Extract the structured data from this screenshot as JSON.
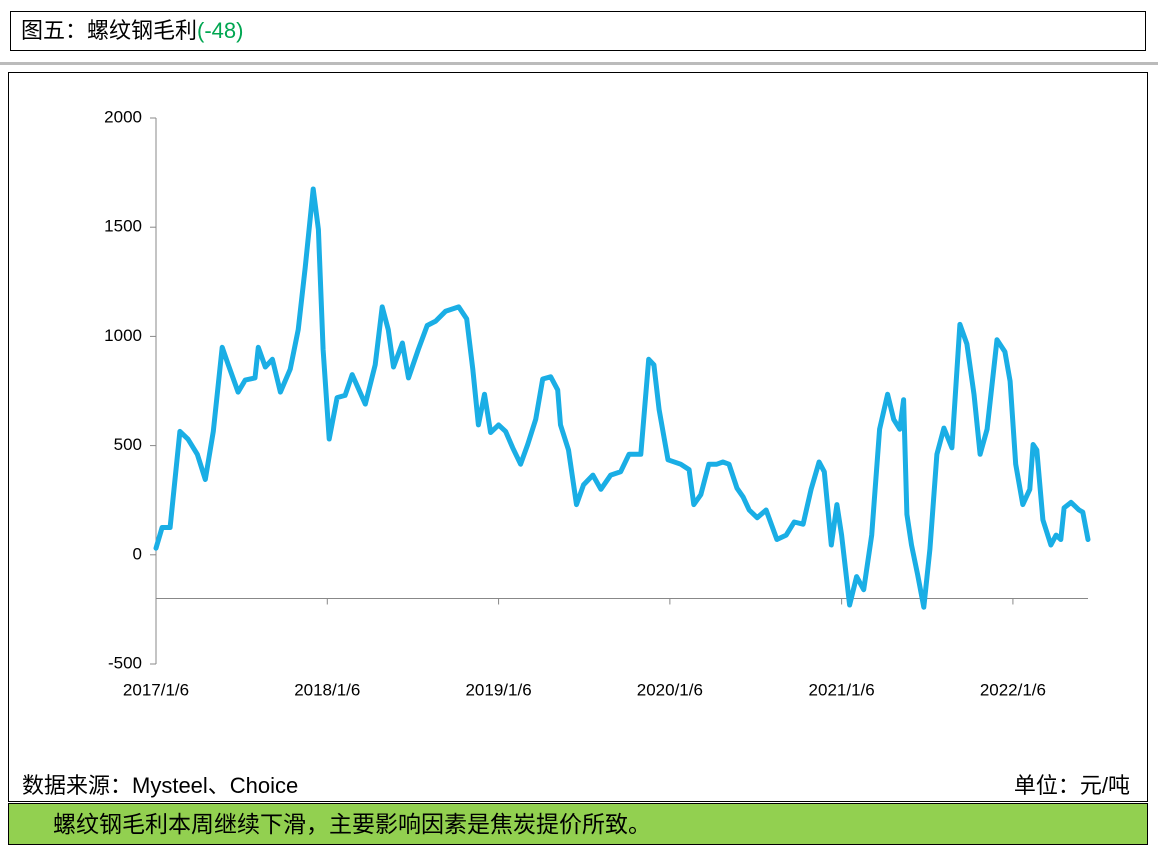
{
  "header": {
    "title": "图五：螺纹钢毛利",
    "title_note": "(-48)"
  },
  "chart_data": {
    "type": "line",
    "x": [
      "2017/1/6",
      "2017/1/19",
      "2017/2/5",
      "2017/2/26",
      "2017/3/15",
      "2017/4/4",
      "2017/4/21",
      "2017/5/8",
      "2017/5/27",
      "2017/6/9",
      "2017/6/30",
      "2017/7/15",
      "2017/8/5",
      "2017/8/12",
      "2017/8/27",
      "2017/9/11",
      "2017/9/28",
      "2017/10/19",
      "2017/11/5",
      "2017/11/20",
      "2017/12/7",
      "2017/12/18",
      "2017/12/28",
      "2018/1/10",
      "2018/1/27",
      "2018/2/13",
      "2018/2/28",
      "2018/3/28",
      "2018/4/18",
      "2018/5/3",
      "2018/5/16",
      "2018/5/27",
      "2018/6/15",
      "2018/6/28",
      "2018/7/19",
      "2018/8/7",
      "2018/8/25",
      "2018/9/15",
      "2018/10/13",
      "2018/10/30",
      "2018/11/12",
      "2018/11/24",
      "2018/12/7",
      "2018/12/20",
      "2019/1/6",
      "2019/1/21",
      "2019/2/5",
      "2019/2/22",
      "2019/3/9",
      "2019/3/26",
      "2019/4/10",
      "2019/4/27",
      "2019/5/12",
      "2019/5/18",
      "2019/6/4",
      "2019/6/21",
      "2019/7/6",
      "2019/7/26",
      "2019/8/12",
      "2019/9/2",
      "2019/9/23",
      "2019/10/11",
      "2019/11/5",
      "2019/11/22",
      "2019/12/3",
      "2019/12/14",
      "2020/1/2",
      "2020/1/29",
      "2020/2/16",
      "2020/2/26",
      "2020/3/12",
      "2020/3/29",
      "2020/4/15",
      "2020/4/28",
      "2020/5/11",
      "2020/5/28",
      "2020/6/10",
      "2020/6/23",
      "2020/7/10",
      "2020/7/29",
      "2020/8/21",
      "2020/9/10",
      "2020/9/27",
      "2020/10/16",
      "2020/11/2",
      "2020/11/19",
      "2020/11/30",
      "2020/12/15",
      "2020/12/27",
      "2021/1/6",
      "2021/1/23",
      "2021/2/7",
      "2021/2/22",
      "2021/3/11",
      "2021/3/28",
      "2021/4/14",
      "2021/4/27",
      "2021/5/10",
      "2021/5/18",
      "2021/5/25",
      "2021/6/4",
      "2021/6/17",
      "2021/6/30",
      "2021/7/13",
      "2021/7/28",
      "2021/8/12",
      "2021/8/29",
      "2021/9/15",
      "2021/9/30",
      "2021/10/15",
      "2021/10/28",
      "2021/11/12",
      "2021/12/3",
      "2021/12/20",
      "2021/12/31",
      "2022/1/12",
      "2022/1/27",
      "2022/2/11",
      "2022/2/18",
      "2022/2/26",
      "2022/3/11",
      "2022/3/28",
      "2022/4/8",
      "2022/4/18",
      "2022/4/25",
      "2022/5/10",
      "2022/5/27",
      "2022/6/4",
      "2022/6/15"
    ],
    "series": [
      {
        "color": "#1aaee5",
        "values": [
          30,
          125,
          125,
          565,
          530,
          460,
          345,
          565,
          950,
          870,
          745,
          800,
          810,
          950,
          860,
          895,
          745,
          850,
          1030,
          1315,
          1675,
          1490,
          940,
          530,
          720,
          730,
          825,
          690,
          870,
          1135,
          1030,
          860,
          970,
          810,
          940,
          1050,
          1070,
          1115,
          1135,
          1080,
          850,
          595,
          735,
          560,
          595,
          565,
          490,
          415,
          505,
          620,
          805,
          815,
          755,
          595,
          480,
          230,
          320,
          365,
          300,
          365,
          380,
          460,
          460,
          895,
          870,
          665,
          435,
          415,
          390,
          230,
          275,
          415,
          415,
          425,
          415,
          305,
          265,
          205,
          170,
          205,
          70,
          90,
          150,
          140,
          300,
          425,
          380,
          45,
          230,
          90,
          -230,
          -100,
          -160,
          90,
          575,
          735,
          620,
          575,
          710,
          185,
          45,
          -90,
          -240,
          25,
          460,
          580,
          490,
          1055,
          965,
          735,
          460,
          575,
          985,
          930,
          795,
          415,
          230,
          300,
          505,
          480,
          160,
          45,
          90,
          70,
          215,
          240,
          205,
          195,
          70
        ]
      }
    ],
    "xlim": [
      "2017/1/6",
      "2022/6/15"
    ],
    "xticks": [
      "2017/1/6",
      "2018/1/6",
      "2019/1/6",
      "2020/1/6",
      "2021/1/6",
      "2022/1/6"
    ],
    "ylim": [
      -500,
      2000
    ],
    "yticks": [
      2000,
      1500,
      1000,
      500,
      0,
      -500
    ],
    "x_axis_crossing": -200,
    "grid": false
  },
  "footer": {
    "source": "数据来源：Mysteel、Choice",
    "unit": "单位：元/吨",
    "conclusion": "螺纹钢毛利本周继续下滑，主要影响因素是焦炭提价所致。"
  }
}
